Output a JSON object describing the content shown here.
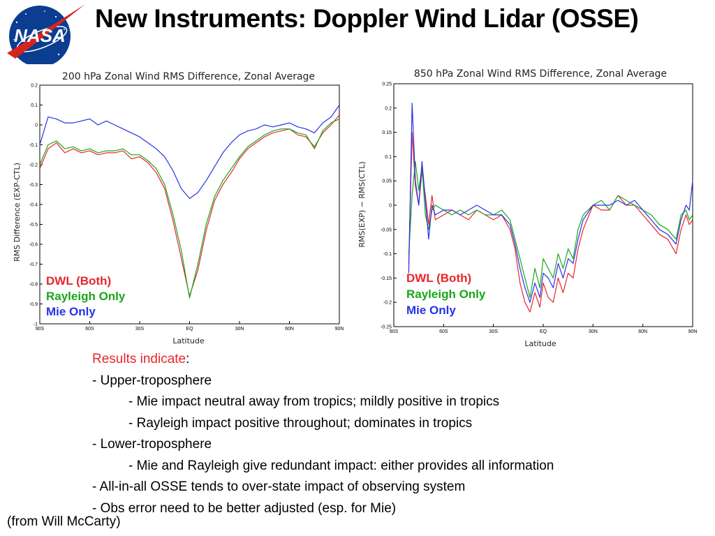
{
  "slide": {
    "title": "New Instruments: Doppler Wind Lidar (OSSE)",
    "logo_text": "NASA",
    "credit": "(from Will McCarty)"
  },
  "colors": {
    "dwl": "#e8262b",
    "rayleigh": "#1aa51a",
    "mie": "#2434e8",
    "nasa_blue": "#0b3d91",
    "nasa_red": "#d8231d"
  },
  "notes": {
    "heading": "Results indicate",
    "heading_suffix": ":",
    "lines": [
      "- Upper-troposphere",
      "- Mie impact neutral away from tropics;  mildly positive in tropics",
      "- Rayleigh impact positive throughout; dominates in tropics",
      "- Lower-troposphere",
      "- Mie and Rayleigh give redundant impact: either provides all information",
      "- All-in-all OSSE tends to over-state impact of observing system",
      "- Obs error need to be better adjusted (esp. for Mie)"
    ]
  },
  "chart_data": [
    {
      "type": "line",
      "title": "200 hPa Zonal Wind RMS Difference, Zonal Average",
      "xlabel": "Latitude",
      "ylabel": "RMS Difference (EXP-CTL)",
      "xlim": [
        -90,
        90
      ],
      "ylim": [
        -1,
        0.2
      ],
      "xticks": [
        -90,
        -60,
        -30,
        0,
        30,
        60,
        90
      ],
      "xtick_labels": [
        "90S",
        "60S",
        "30S",
        "EQ",
        "30N",
        "60N",
        "90N"
      ],
      "yticks": [
        0.2,
        0.1,
        0,
        -0.1,
        -0.2,
        -0.3,
        -0.4,
        -0.5,
        -0.6,
        -0.7,
        -0.8,
        -0.9,
        -1
      ],
      "ytick_labels": [
        "0.2",
        "0.1",
        "0",
        "-0.1",
        "-0.2",
        "-0.3",
        "-0.4",
        "-0.5",
        "-0.6",
        "-0.7",
        "-0.8",
        "-0.9",
        "-1"
      ],
      "legend_position": "bottom-left",
      "x": [
        -90,
        -85,
        -80,
        -75,
        -70,
        -65,
        -60,
        -55,
        -50,
        -45,
        -40,
        -35,
        -30,
        -25,
        -20,
        -15,
        -10,
        -5,
        0,
        5,
        10,
        15,
        20,
        25,
        30,
        35,
        40,
        45,
        50,
        55,
        60,
        65,
        70,
        75,
        80,
        85,
        90
      ],
      "series": [
        {
          "name": "DWL (Both)",
          "color": "#e8262b",
          "values": [
            -0.22,
            -0.12,
            -0.09,
            -0.14,
            -0.12,
            -0.14,
            -0.13,
            -0.15,
            -0.14,
            -0.14,
            -0.13,
            -0.17,
            -0.16,
            -0.19,
            -0.24,
            -0.32,
            -0.48,
            -0.67,
            -0.86,
            -0.73,
            -0.53,
            -0.38,
            -0.3,
            -0.24,
            -0.17,
            -0.12,
            -0.09,
            -0.06,
            -0.04,
            -0.03,
            -0.02,
            -0.05,
            -0.06,
            -0.11,
            -0.04,
            0.0,
            0.05
          ]
        },
        {
          "name": "Rayleigh Only",
          "color": "#1aa51a",
          "values": [
            -0.2,
            -0.1,
            -0.08,
            -0.12,
            -0.11,
            -0.13,
            -0.12,
            -0.14,
            -0.13,
            -0.13,
            -0.12,
            -0.15,
            -0.15,
            -0.18,
            -0.22,
            -0.3,
            -0.45,
            -0.63,
            -0.87,
            -0.7,
            -0.5,
            -0.36,
            -0.28,
            -0.22,
            -0.16,
            -0.11,
            -0.08,
            -0.05,
            -0.03,
            -0.02,
            -0.02,
            -0.04,
            -0.05,
            -0.12,
            -0.03,
            0.01,
            0.03
          ]
        },
        {
          "name": "Mie Only",
          "color": "#2434e8",
          "values": [
            -0.1,
            0.04,
            0.03,
            0.01,
            0.01,
            0.02,
            0.03,
            0.0,
            0.02,
            0.0,
            -0.02,
            -0.04,
            -0.06,
            -0.09,
            -0.12,
            -0.16,
            -0.23,
            -0.32,
            -0.37,
            -0.34,
            -0.28,
            -0.21,
            -0.14,
            -0.09,
            -0.05,
            -0.03,
            -0.02,
            0.0,
            -0.01,
            0.0,
            0.01,
            -0.01,
            -0.02,
            -0.04,
            0.01,
            0.04,
            0.1
          ]
        }
      ]
    },
    {
      "type": "line",
      "title": "850 hPa Zonal Wind RMS Difference, Zonal Average",
      "xlabel": "Latitude",
      "ylabel": "RMS(EXP) − RMS(CTL)",
      "xlim": [
        -90,
        90
      ],
      "ylim": [
        -0.25,
        0.25
      ],
      "xticks": [
        -90,
        -60,
        -30,
        0,
        30,
        60,
        90
      ],
      "xtick_labels": [
        "90S",
        "60S",
        "30S",
        "EQ",
        "30N",
        "60N",
        "90N"
      ],
      "yticks": [
        0.25,
        0.2,
        0.15,
        0.1,
        0.05,
        0,
        -0.05,
        -0.1,
        -0.15,
        -0.2,
        -0.25
      ],
      "ytick_labels": [
        "0.25",
        "0.2",
        "0.15",
        "0.1",
        "0.05",
        "0",
        "-0.05",
        "-0.1",
        "-0.15",
        "-0.2",
        "-0.25"
      ],
      "legend_position": "bottom-left",
      "x": [
        -81,
        -79,
        -77,
        -75,
        -73,
        -71,
        -69,
        -67,
        -65,
        -60,
        -55,
        -50,
        -45,
        -40,
        -35,
        -30,
        -25,
        -20,
        -17,
        -14,
        -11,
        -8,
        -5,
        -2,
        0,
        3,
        6,
        9,
        12,
        15,
        18,
        21,
        24,
        30,
        35,
        40,
        45,
        50,
        55,
        60,
        65,
        70,
        75,
        80,
        83,
        86,
        88,
        90
      ],
      "series": [
        {
          "name": "DWL (Both)",
          "color": "#e8262b",
          "values": [
            -0.12,
            0.15,
            0.04,
            0.0,
            0.07,
            0.02,
            -0.04,
            0.02,
            -0.03,
            -0.02,
            -0.01,
            -0.02,
            -0.03,
            -0.01,
            -0.02,
            -0.03,
            -0.02,
            -0.05,
            -0.09,
            -0.16,
            -0.2,
            -0.22,
            -0.18,
            -0.21,
            -0.16,
            -0.19,
            -0.2,
            -0.15,
            -0.18,
            -0.14,
            -0.15,
            -0.09,
            -0.05,
            0.0,
            -0.01,
            -0.01,
            0.02,
            0.0,
            0.0,
            -0.02,
            -0.04,
            -0.06,
            -0.07,
            -0.1,
            -0.05,
            -0.02,
            -0.04,
            -0.03
          ]
        },
        {
          "name": "Rayleigh Only",
          "color": "#1aa51a",
          "values": [
            -0.1,
            0.02,
            0.09,
            0.03,
            0.08,
            -0.02,
            -0.05,
            -0.01,
            0.0,
            -0.01,
            -0.02,
            -0.01,
            -0.02,
            -0.01,
            -0.02,
            -0.02,
            -0.01,
            -0.03,
            -0.07,
            -0.11,
            -0.15,
            -0.19,
            -0.13,
            -0.17,
            -0.11,
            -0.13,
            -0.15,
            -0.1,
            -0.13,
            -0.09,
            -0.11,
            -0.05,
            -0.02,
            0.0,
            0.01,
            -0.01,
            0.02,
            0.01,
            0.0,
            -0.01,
            -0.02,
            -0.04,
            -0.05,
            -0.07,
            -0.02,
            -0.01,
            -0.03,
            -0.02
          ]
        },
        {
          "name": "Mie Only",
          "color": "#2434e8",
          "values": [
            -0.14,
            0.21,
            0.05,
            0.0,
            0.09,
            0.01,
            -0.07,
            0.0,
            -0.02,
            -0.01,
            -0.01,
            -0.02,
            -0.01,
            0.0,
            -0.01,
            -0.02,
            -0.02,
            -0.04,
            -0.08,
            -0.13,
            -0.17,
            -0.2,
            -0.16,
            -0.19,
            -0.14,
            -0.15,
            -0.17,
            -0.12,
            -0.15,
            -0.11,
            -0.12,
            -0.07,
            -0.03,
            0.0,
            0.0,
            0.0,
            0.01,
            0.0,
            0.01,
            -0.01,
            -0.03,
            -0.05,
            -0.06,
            -0.08,
            -0.03,
            0.0,
            -0.01,
            0.05
          ]
        }
      ]
    }
  ]
}
